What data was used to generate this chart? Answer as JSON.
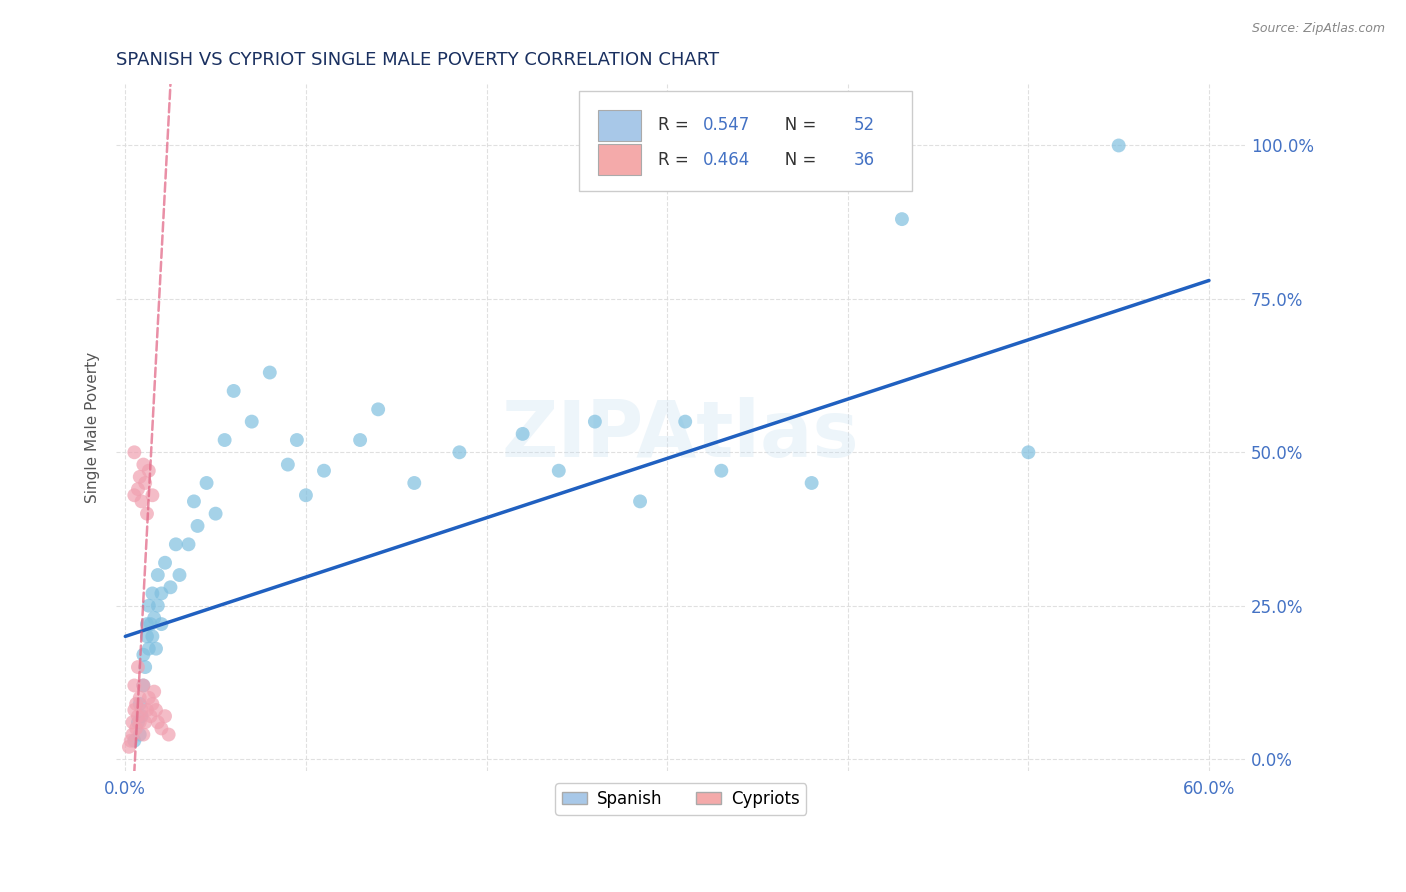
{
  "title": "SPANISH VS CYPRIOT SINGLE MALE POVERTY CORRELATION CHART",
  "source": "Source: ZipAtlas.com",
  "ylabel": "Single Male Poverty",
  "xlim": [
    -0.005,
    0.62
  ],
  "ylim": [
    -0.02,
    1.1
  ],
  "yticks": [
    0.0,
    0.25,
    0.5,
    0.75,
    1.0
  ],
  "ytick_labels": [
    "0.0%",
    "25.0%",
    "50.0%",
    "75.0%",
    "100.0%"
  ],
  "xticks": [
    0.0,
    0.1,
    0.2,
    0.3,
    0.4,
    0.5,
    0.6
  ],
  "xtick_labels": [
    "0.0%",
    "",
    "",
    "",
    "",
    "",
    "60.0%"
  ],
  "spanish_R": 0.547,
  "spanish_N": 52,
  "cypriot_R": 0.464,
  "cypriot_N": 36,
  "spanish_color": "#7fbfdf",
  "cypriot_color": "#f0a0b0",
  "regression_blue": "#2060c0",
  "regression_pink": "#e06080",
  "grid_color": "#dddddd",
  "title_color": "#1a3060",
  "tick_color": "#4472c4",
  "legend_box_color": "#a8c8e8",
  "legend_pink_color": "#f4aaaa",
  "spanish_x": [
    0.005,
    0.007,
    0.008,
    0.008,
    0.009,
    0.01,
    0.01,
    0.011,
    0.012,
    0.012,
    0.013,
    0.013,
    0.014,
    0.015,
    0.015,
    0.016,
    0.017,
    0.018,
    0.018,
    0.02,
    0.02,
    0.022,
    0.025,
    0.028,
    0.03,
    0.035,
    0.038,
    0.04,
    0.045,
    0.05,
    0.055,
    0.06,
    0.07,
    0.08,
    0.09,
    0.095,
    0.1,
    0.11,
    0.13,
    0.14,
    0.16,
    0.185,
    0.22,
    0.24,
    0.26,
    0.285,
    0.31,
    0.33,
    0.38,
    0.43,
    0.5,
    0.55
  ],
  "spanish_y": [
    0.03,
    0.06,
    0.04,
    0.09,
    0.07,
    0.12,
    0.17,
    0.15,
    0.2,
    0.22,
    0.18,
    0.25,
    0.22,
    0.2,
    0.27,
    0.23,
    0.18,
    0.25,
    0.3,
    0.22,
    0.27,
    0.32,
    0.28,
    0.35,
    0.3,
    0.35,
    0.42,
    0.38,
    0.45,
    0.4,
    0.52,
    0.6,
    0.55,
    0.63,
    0.48,
    0.52,
    0.43,
    0.47,
    0.52,
    0.57,
    0.45,
    0.5,
    0.53,
    0.47,
    0.55,
    0.42,
    0.55,
    0.47,
    0.45,
    0.88,
    0.5,
    1.0
  ],
  "cypriot_x": [
    0.002,
    0.003,
    0.004,
    0.004,
    0.005,
    0.005,
    0.005,
    0.006,
    0.006,
    0.007,
    0.007,
    0.007,
    0.008,
    0.008,
    0.008,
    0.009,
    0.009,
    0.01,
    0.01,
    0.01,
    0.011,
    0.011,
    0.012,
    0.012,
    0.013,
    0.013,
    0.014,
    0.015,
    0.015,
    0.016,
    0.017,
    0.018,
    0.02,
    0.022,
    0.024,
    0.005
  ],
  "cypriot_y": [
    0.02,
    0.03,
    0.04,
    0.06,
    0.08,
    0.12,
    0.43,
    0.05,
    0.09,
    0.07,
    0.15,
    0.44,
    0.06,
    0.1,
    0.46,
    0.08,
    0.42,
    0.04,
    0.12,
    0.48,
    0.06,
    0.45,
    0.08,
    0.4,
    0.1,
    0.47,
    0.07,
    0.09,
    0.43,
    0.11,
    0.08,
    0.06,
    0.05,
    0.07,
    0.04,
    0.5
  ]
}
